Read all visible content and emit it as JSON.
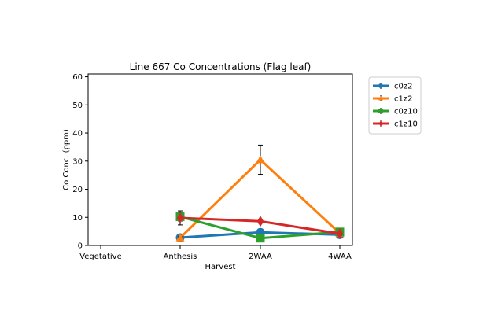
{
  "chart_data": {
    "type": "line",
    "title": "Line 667 Co Concentrations (Flag leaf)",
    "xlabel": "Harvest",
    "ylabel": "Co Conc. (ppm)",
    "categories": [
      "Vegetative",
      "Anthesis",
      "2WAA",
      "4WAA"
    ],
    "ylim": [
      0,
      61
    ],
    "yticks": [
      0,
      10,
      20,
      30,
      40,
      50,
      60
    ],
    "grid": false,
    "legend_position": "outside-top-right",
    "series": [
      {
        "name": "c0z2",
        "color": "#1f77b4",
        "marker": "circle",
        "values": [
          null,
          2.8,
          4.7,
          3.8
        ],
        "errors": [
          null,
          0.4,
          0.6,
          0.5
        ]
      },
      {
        "name": "c1z2",
        "color": "#ff7f0e",
        "marker": "triangle",
        "values": [
          null,
          2.7,
          30.5,
          4.3
        ],
        "errors": [
          null,
          0.4,
          5.2,
          0.6
        ]
      },
      {
        "name": "c0z10",
        "color": "#2ca02c",
        "marker": "square",
        "values": [
          null,
          10.2,
          2.6,
          4.8
        ],
        "errors": [
          null,
          1.5,
          0.5,
          0.6
        ]
      },
      {
        "name": "c1z10",
        "color": "#d62728",
        "marker": "diamond",
        "values": [
          null,
          9.8,
          8.6,
          4.2
        ],
        "errors": [
          null,
          2.5,
          0.7,
          0.5
        ]
      }
    ]
  }
}
